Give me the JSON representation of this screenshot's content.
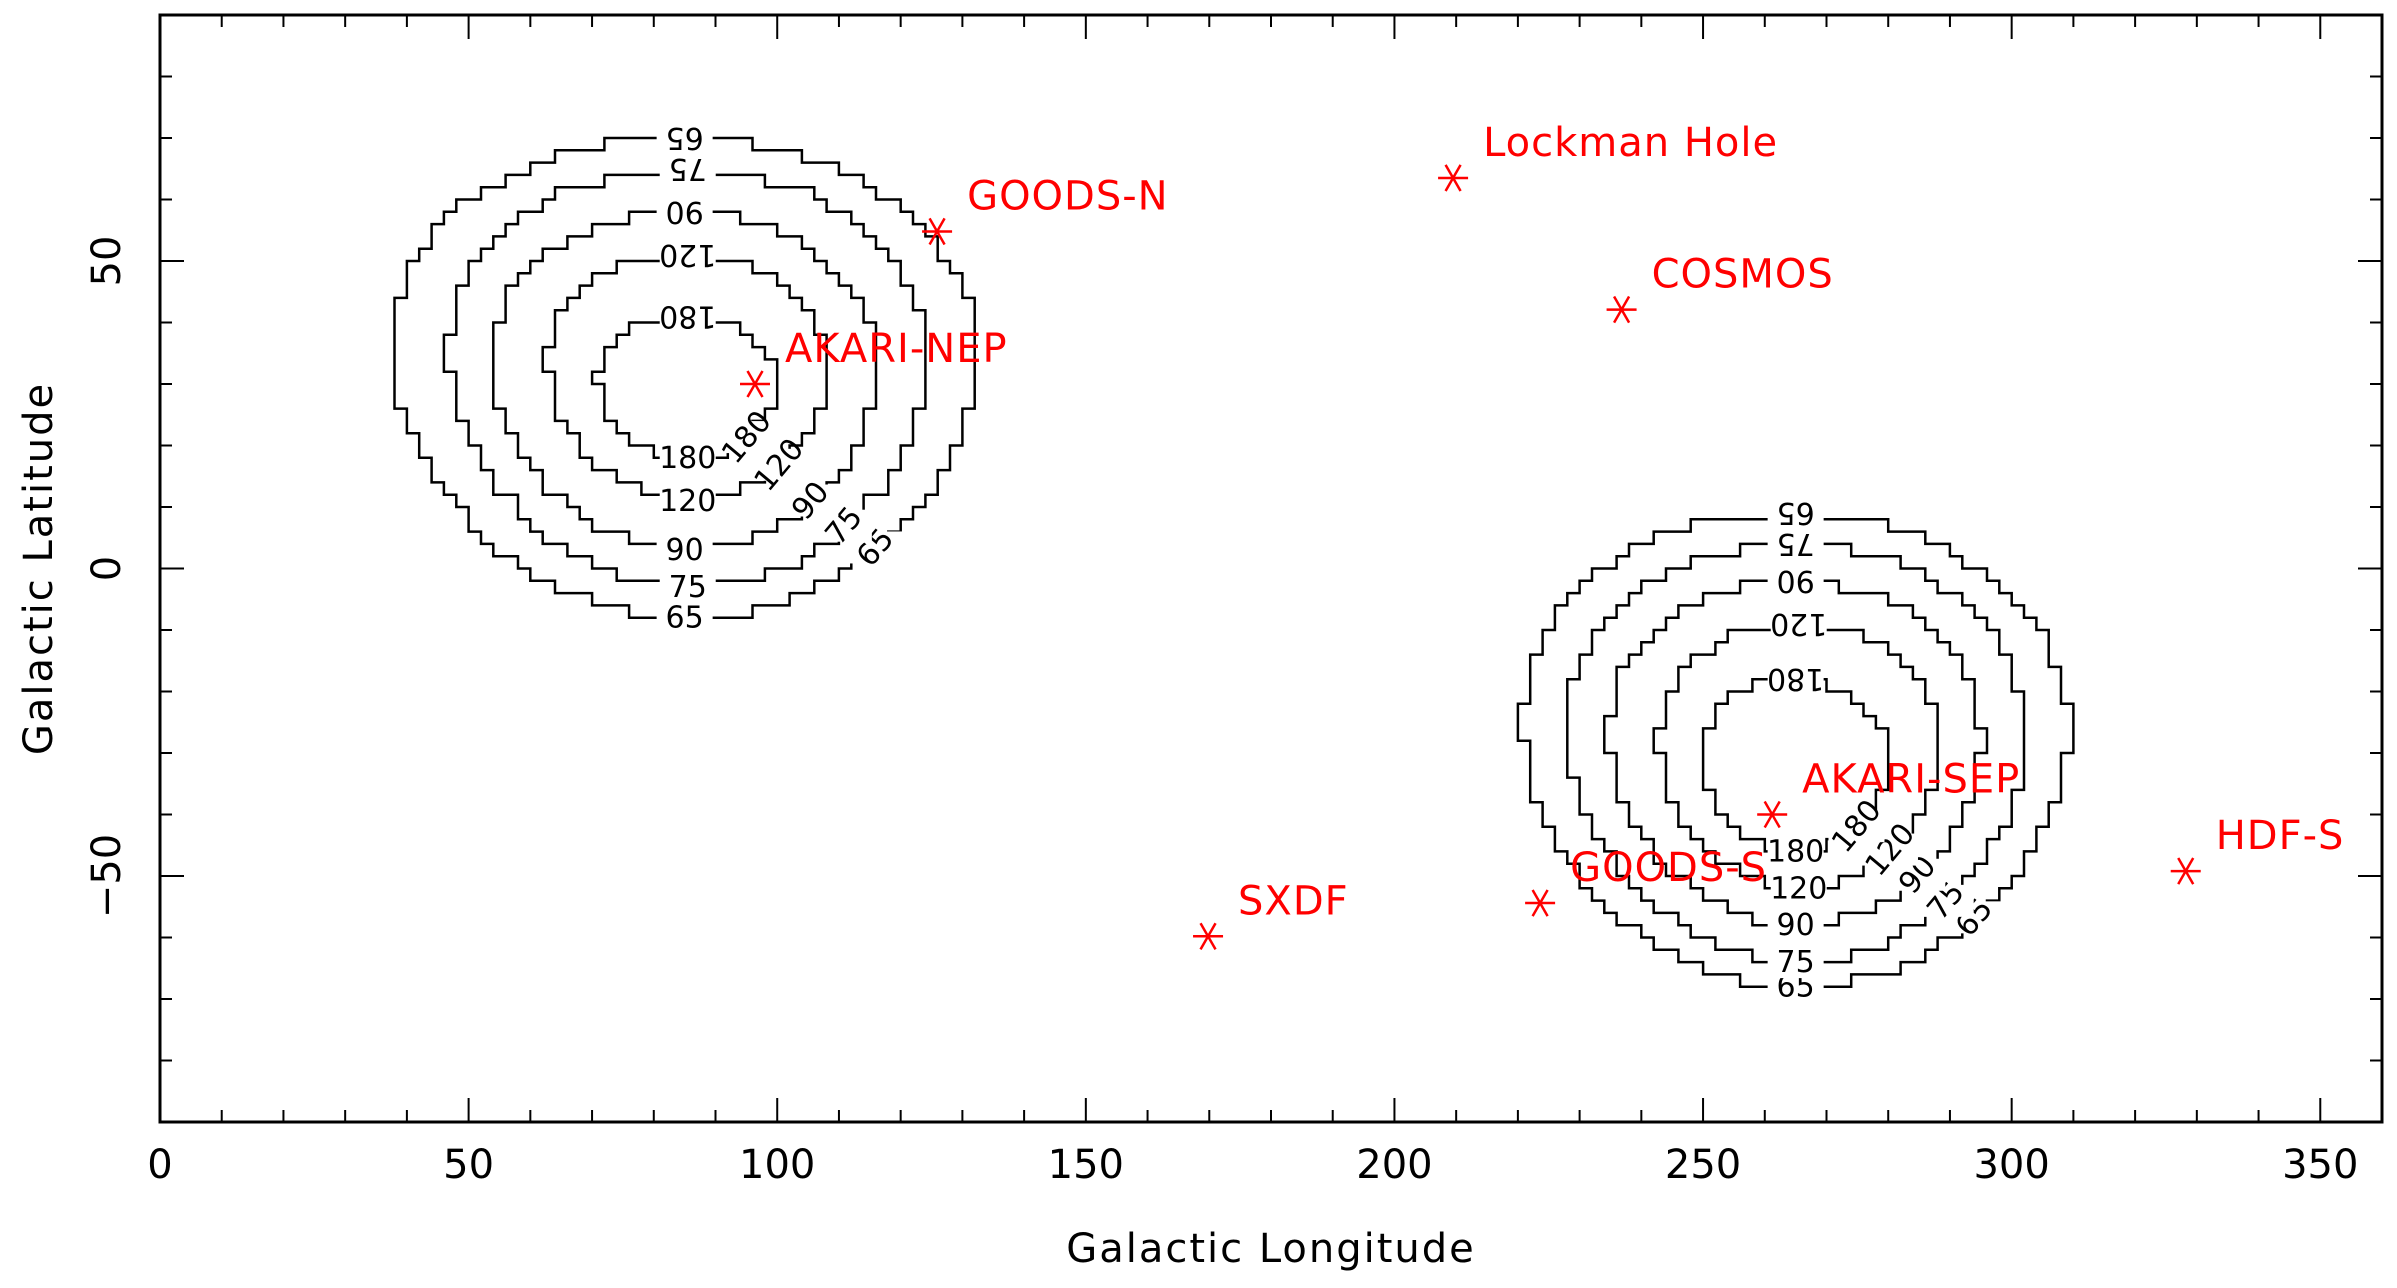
{
  "chart_data": {
    "type": "scatter",
    "title": "",
    "xlabel": "Galactic Longitude",
    "ylabel": "Galactic Latitude",
    "xlim": [
      0,
      360
    ],
    "ylim": [
      -90,
      90
    ],
    "xticks": [
      "0",
      "50",
      "100",
      "150",
      "200",
      "250",
      "300",
      "350"
    ],
    "yticks": [
      "−50",
      "0",
      "50"
    ],
    "grid": false,
    "marker_color": "#ff0000",
    "line_color": "#000000",
    "fields": [
      {
        "name": "AKARI-NEP",
        "l": 96.4,
        "b": 30.0
      },
      {
        "name": "GOODS-N",
        "l": 125.9,
        "b": 54.8
      },
      {
        "name": "Lockman Hole",
        "l": 209.5,
        "b": 63.5
      },
      {
        "name": "COSMOS",
        "l": 236.8,
        "b": 42.1
      },
      {
        "name": "AKARI-SEP",
        "l": 261.2,
        "b": -40.0
      },
      {
        "name": "GOODS-S",
        "l": 223.6,
        "b": -54.4
      },
      {
        "name": "SXDF",
        "l": 169.8,
        "b": -59.8
      },
      {
        "name": "HDF-S",
        "l": 328.2,
        "b": -49.2
      }
    ],
    "contour_levels": [
      65,
      75,
      90,
      120,
      180
    ],
    "contour_label": {
      "65": "65",
      "75": "75",
      "90": "90",
      "120": "120",
      "180": "180"
    },
    "contour_groups": [
      {
        "center": [
          96.4,
          30.0
        ],
        "rings": [
          {
            "level": 65,
            "x_extent": [
              38,
              132
            ],
            "y_extent": [
              -8,
              70
            ]
          },
          {
            "level": 75,
            "x_extent": [
              47,
              124
            ],
            "y_extent": [
              -3,
              65
            ]
          },
          {
            "level": 90,
            "x_extent": [
              54,
              116
            ],
            "y_extent": [
              3,
              58
            ]
          },
          {
            "level": 120,
            "x_extent": [
              63,
              108
            ],
            "y_extent": [
              11,
              51
            ]
          },
          {
            "level": 180,
            "x_extent": [
              71,
              100
            ],
            "y_extent": [
              18,
              41
            ]
          }
        ]
      },
      {
        "center": [
          261.2,
          -40.0
        ],
        "rings": [
          {
            "level": 65,
            "x_extent": [
              221,
              309
            ],
            "y_extent": [
              -68,
              9
            ]
          },
          {
            "level": 75,
            "x_extent": [
              228,
              302
            ],
            "y_extent": [
              -64,
              4
            ]
          },
          {
            "level": 90,
            "x_extent": [
              235,
              295
            ],
            "y_extent": [
              -58,
              -2
            ]
          },
          {
            "level": 120,
            "x_extent": [
              243,
              288
            ],
            "y_extent": [
              -52,
              -9
            ]
          },
          {
            "level": 180,
            "x_extent": [
              250,
              280
            ],
            "y_extent": [
              -46,
              -18
            ]
          }
        ]
      }
    ]
  }
}
